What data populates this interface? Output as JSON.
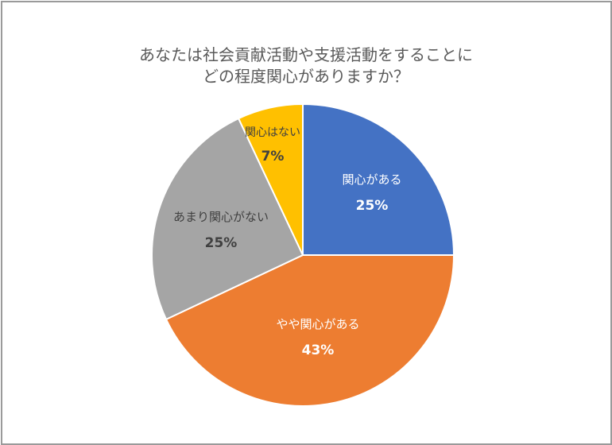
{
  "chart_data": {
    "type": "pie",
    "title": "あなたは社会貢献活動や支援活動をすることにどの程度関心がありますか？",
    "title_lines": [
      "あなたは社会貢献活動や支援活動をすることに",
      "どの程度関心がありますか？"
    ],
    "categories": [
      "関心がある",
      "やや関心がある",
      "あまり関心がない",
      "関心はない"
    ],
    "values": [
      25,
      43,
      25,
      7
    ],
    "value_labels": [
      "25%",
      "43%",
      "25%",
      "7%"
    ],
    "colors": [
      "#4472c4",
      "#ed7d31",
      "#a5a5a5",
      "#ffc000"
    ],
    "label_colors": [
      "#ffffff",
      "#ffffff",
      "#404040",
      "#404040"
    ],
    "start_angle": "12 o'clock, clockwise",
    "legend": "none (data labels inside slices)"
  }
}
